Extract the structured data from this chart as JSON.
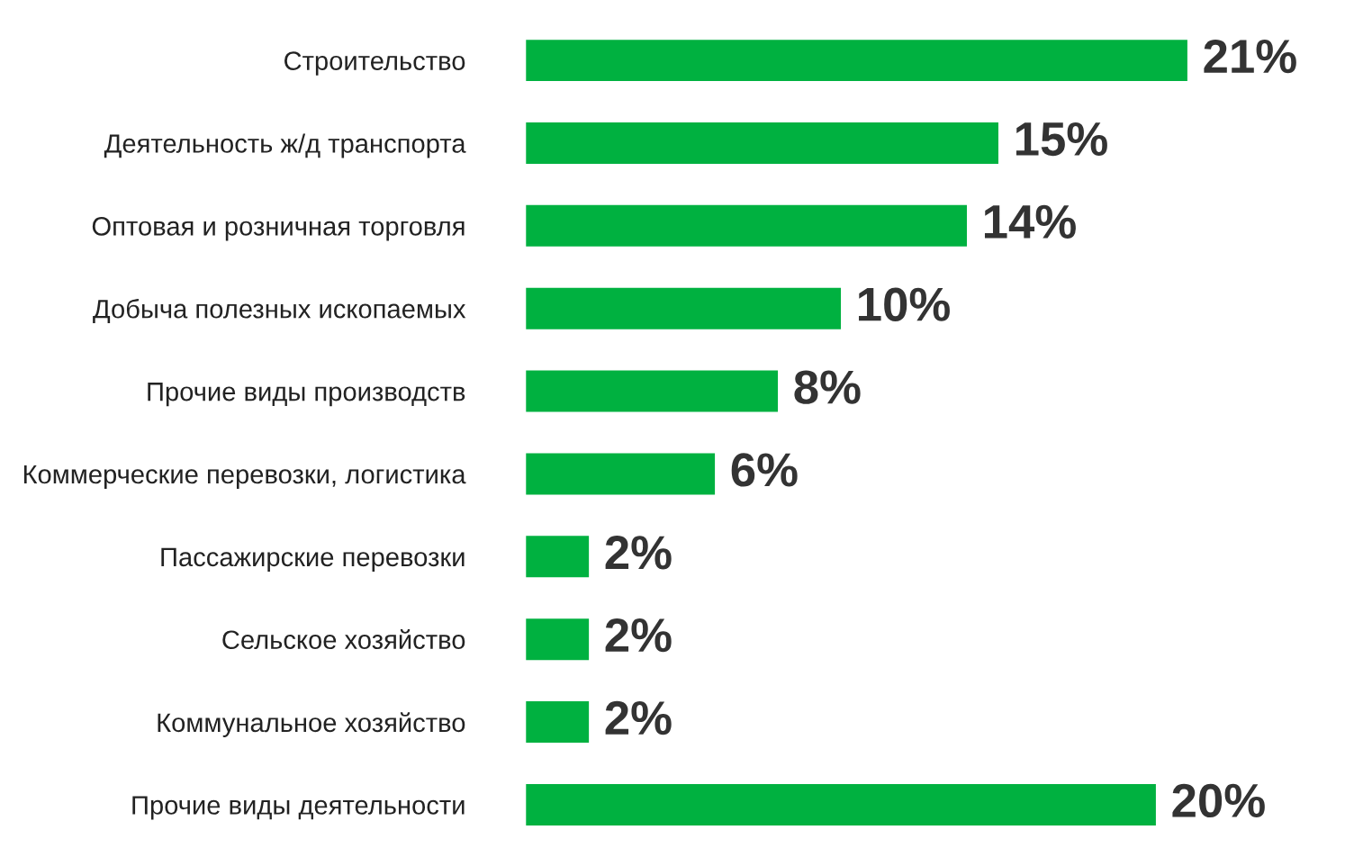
{
  "chart_data": {
    "type": "bar",
    "orientation": "horizontal",
    "categories": [
      "Строительство",
      "Деятельность ж/д транспорта",
      "Оптовая и розничная торговля",
      "Добыча полезных ископаемых",
      "Прочие виды производств",
      "Коммерческие перевозки, логистика",
      "Пассажирские перевозки",
      "Сельское хозяйство",
      "Коммунальное хозяйство",
      "Прочие виды деятельности"
    ],
    "values": [
      21,
      15,
      14,
      10,
      8,
      6,
      2,
      2,
      2,
      20
    ],
    "value_labels": [
      "21%",
      "15%",
      "14%",
      "10%",
      "8%",
      "6%",
      "2%",
      "2%",
      "2%",
      "20%"
    ],
    "color": "#00b140",
    "grid": false,
    "legend": false
  }
}
